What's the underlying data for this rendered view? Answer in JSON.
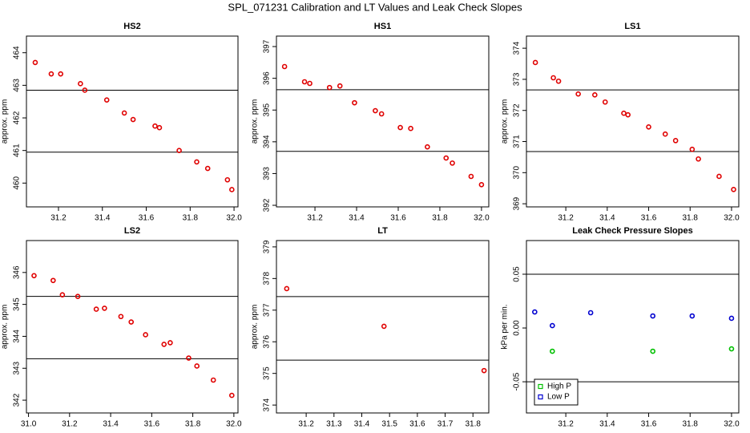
{
  "title": "SPL_071231  Calibration and LT Values and Leak Check Slopes",
  "chart_data": [
    {
      "type": "scatter",
      "title": "HS2",
      "ylabel": "approx. ppm",
      "xlim": [
        31.054,
        32.018
      ],
      "ylim": [
        459.27,
        464.51
      ],
      "xticks": [
        31.2,
        31.4,
        31.6,
        31.8,
        {
          "value": 32,
          "label": "32.0"
        }
      ],
      "yticks": [
        460,
        461,
        462,
        463,
        464
      ],
      "hlines": [
        462.85,
        460.95
      ],
      "series": [
        {
          "color": "#e00000",
          "x": [
            31.094,
            31.167,
            31.21,
            31.3,
            31.32,
            31.42,
            31.5,
            31.54,
            31.64,
            31.66,
            31.75,
            31.83,
            31.88,
            31.97,
            31.99
          ],
          "values": [
            463.7,
            463.35,
            463.35,
            463.05,
            462.85,
            462.55,
            462.15,
            461.95,
            461.75,
            461.7,
            461.0,
            460.65,
            460.45,
            460.1,
            459.8
          ]
        }
      ]
    },
    {
      "type": "scatter",
      "title": "HS1",
      "ylabel": "approx. ppm",
      "xlim": [
        31.015,
        32.035
      ],
      "ylim": [
        391.95,
        397.33
      ],
      "xticks": [
        31.2,
        31.4,
        31.6,
        31.8,
        {
          "value": 32,
          "label": "32.0"
        }
      ],
      "yticks": [
        392,
        393,
        394,
        395,
        396,
        397
      ],
      "hlines": [
        395.64,
        393.7
      ],
      "series": [
        {
          "color": "#e00000",
          "x": [
            31.054,
            31.15,
            31.175,
            31.27,
            31.32,
            31.39,
            31.49,
            31.52,
            31.61,
            31.66,
            31.74,
            31.83,
            31.86,
            31.95,
            32.0
          ],
          "values": [
            396.37,
            395.89,
            395.84,
            395.71,
            395.76,
            395.23,
            394.98,
            394.88,
            394.45,
            394.42,
            393.84,
            393.49,
            393.33,
            392.91,
            392.65
          ]
        }
      ]
    },
    {
      "type": "scatter",
      "title": "LS1",
      "ylabel": "approx. ppm",
      "xlim": [
        31.01,
        32.035
      ],
      "ylim": [
        368.9,
        374.39
      ],
      "xticks": [
        31.2,
        31.4,
        31.6,
        31.8,
        {
          "value": 32,
          "label": "32.0"
        }
      ],
      "yticks": [
        369,
        370,
        371,
        372,
        373,
        374
      ],
      "hlines": [
        372.66,
        370.68
      ],
      "series": [
        {
          "color": "#e00000",
          "x": [
            31.053,
            31.14,
            31.165,
            31.26,
            31.34,
            31.39,
            31.48,
            31.5,
            31.6,
            31.68,
            31.73,
            31.81,
            31.84,
            31.94,
            32.01
          ],
          "values": [
            373.54,
            373.05,
            372.94,
            372.53,
            372.5,
            372.27,
            371.91,
            371.86,
            371.47,
            371.24,
            371.03,
            370.75,
            370.44,
            369.88,
            369.46
          ]
        }
      ]
    },
    {
      "type": "scatter",
      "title": "LS2",
      "ylabel": "approx. ppm",
      "xlim": [
        30.99,
        32.02
      ],
      "ylim": [
        341.6,
        347
      ],
      "xticks": [
        {
          "value": 31,
          "label": "31.0"
        },
        31.2,
        31.4,
        31.6,
        31.8,
        {
          "value": 32,
          "label": "32.0"
        }
      ],
      "yticks": [
        342,
        343,
        344,
        345,
        346
      ],
      "hlines": [
        345.25,
        343.3
      ],
      "series": [
        {
          "color": "#e00000",
          "x": [
            31.027,
            31.12,
            31.165,
            31.24,
            31.33,
            31.37,
            31.45,
            31.5,
            31.57,
            31.66,
            31.69,
            31.78,
            31.82,
            31.9,
            31.99
          ],
          "values": [
            345.9,
            345.75,
            345.3,
            345.25,
            344.85,
            344.88,
            344.62,
            344.45,
            344.05,
            343.75,
            343.8,
            343.32,
            343.07,
            342.63,
            342.15
          ]
        }
      ]
    },
    {
      "type": "scatter",
      "title": "LT",
      "ylabel": "approx. ppm",
      "xlim": [
        31.093,
        31.857
      ],
      "ylim": [
        373.75,
        379.2
      ],
      "xticks": [
        31.2,
        31.3,
        31.4,
        31.5,
        31.6,
        31.7,
        31.8
      ],
      "yticks": [
        374,
        375,
        376,
        377,
        378,
        379
      ],
      "hlines": [
        377.43,
        375.42
      ],
      "series": [
        {
          "color": "#e00000",
          "x": [
            31.13,
            31.48,
            31.84
          ],
          "values": [
            377.68,
            376.49,
            375.09
          ]
        }
      ]
    },
    {
      "type": "scatter",
      "title": "Leak Check Pressure Slopes",
      "ylabel": "kPa per min.",
      "xlim": [
        31.01,
        32.035
      ],
      "ylim": [
        -0.079,
        0.0813
      ],
      "xticks": [
        31.2,
        31.4,
        31.6,
        31.8,
        {
          "value": 32,
          "label": "32.0"
        }
      ],
      "yticks": [
        0.05,
        {
          "value": 0,
          "label": "0.00"
        },
        -0.05
      ],
      "hlines": [
        0.05,
        -0.05
      ],
      "legend": "bottomleft",
      "series": [
        {
          "name": "High P",
          "color": "#00c000",
          "x": [
            31.135,
            31.62,
            32.0
          ],
          "values": [
            -0.0216,
            -0.0216,
            -0.0194
          ]
        },
        {
          "name": "Low P",
          "color": "#0000d0",
          "x": [
            31.05,
            31.135,
            31.32,
            31.62,
            31.81,
            32.0
          ],
          "values": [
            0.0149,
            0.0022,
            0.0142,
            0.0112,
            0.0112,
            0.009
          ]
        }
      ]
    }
  ]
}
